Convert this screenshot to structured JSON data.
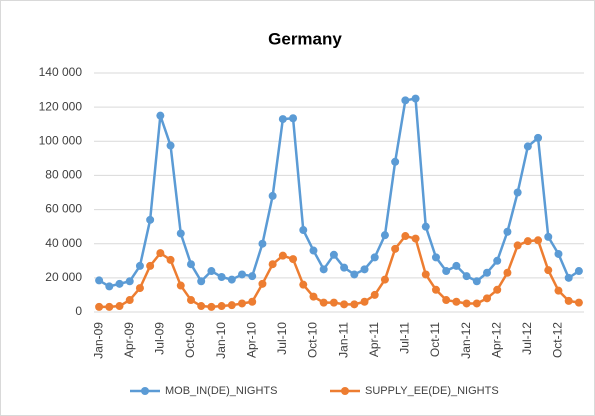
{
  "chart_data": {
    "type": "line",
    "title": "Germany",
    "categories": [
      "Jan-09",
      null,
      null,
      "Apr-09",
      null,
      null,
      "Jul-09",
      null,
      null,
      "Oct-09",
      null,
      null,
      "Jan-10",
      null,
      null,
      "Apr-10",
      null,
      null,
      "Jul-10",
      null,
      null,
      "Oct-10",
      null,
      null,
      "Jan-11",
      null,
      null,
      "Apr-11",
      null,
      null,
      "Jul-11",
      null,
      null,
      "Oct-11",
      null,
      null,
      "Jan-12",
      null,
      null,
      "Apr-12",
      null,
      null,
      "Jul-12",
      null,
      null,
      "Oct-12",
      null,
      null
    ],
    "series": [
      {
        "name": "MOB_IN(DE)_NIGHTS",
        "color": "#5b9bd5",
        "values": [
          18500,
          15000,
          16500,
          18000,
          27000,
          54000,
          115000,
          97500,
          46000,
          28000,
          18000,
          24000,
          20500,
          19000,
          22000,
          21000,
          40000,
          68000,
          113000,
          113500,
          48000,
          36000,
          25000,
          33500,
          26000,
          22000,
          25000,
          32000,
          45000,
          88000,
          124000,
          125000,
          50000,
          32000,
          24000,
          27000,
          21000,
          18000,
          23000,
          30000,
          47000,
          70000,
          97000,
          102000,
          44000,
          34000,
          20000,
          24000
        ]
      },
      {
        "name": "SUPPLY_EE(DE)_NIGHTS",
        "color": "#ed7d31",
        "values": [
          3000,
          3000,
          3500,
          7000,
          14000,
          27000,
          34500,
          30500,
          15500,
          7000,
          3500,
          3000,
          3500,
          4000,
          5000,
          6000,
          16500,
          28000,
          33000,
          31000,
          16000,
          9000,
          5500,
          5500,
          4500,
          4500,
          6000,
          10000,
          19000,
          37000,
          44500,
          43000,
          22000,
          13000,
          7000,
          6000,
          5000,
          5000,
          8000,
          13000,
          23000,
          39000,
          41500,
          42000,
          24500,
          12500,
          6500,
          5500
        ]
      }
    ],
    "ylim": [
      0,
      140000
    ],
    "yticks": [
      0,
      {
        "value": 20000,
        "label": "20 000"
      },
      {
        "value": 40000,
        "label": "40 000"
      },
      {
        "value": 60000,
        "label": "60 000"
      },
      {
        "value": 80000,
        "label": "80 000"
      },
      {
        "value": 100000,
        "label": "100 000"
      },
      {
        "value": 120000,
        "label": "120 000"
      },
      {
        "value": 140000,
        "label": "140 000"
      }
    ],
    "grid": true,
    "legend": "bottom"
  }
}
